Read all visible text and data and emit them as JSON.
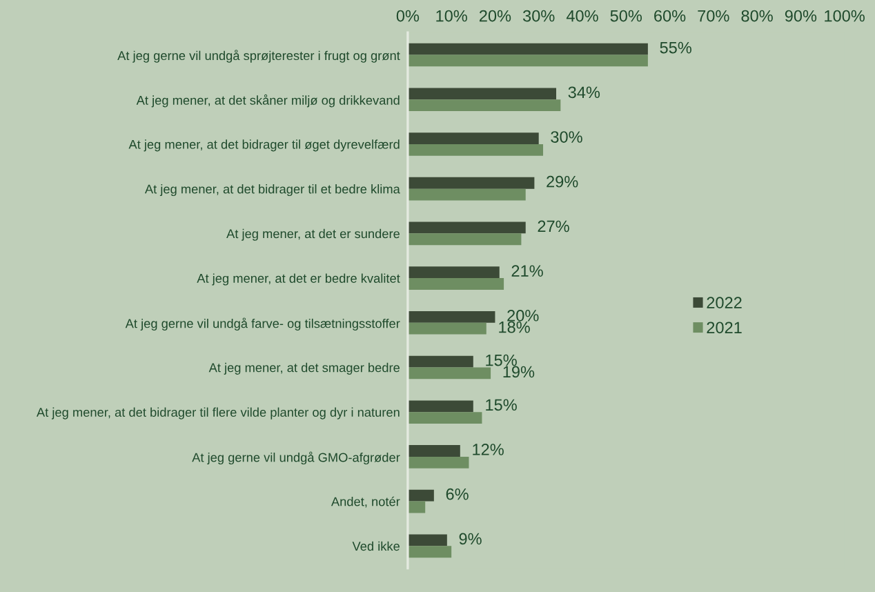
{
  "chart_data": {
    "type": "bar",
    "orientation": "horizontal",
    "categories": [
      "At jeg gerne vil undgå sprøjterester i frugt og grønt",
      "At jeg mener, at det skåner miljø og drikkevand",
      "At jeg mener, at det bidrager til øget dyrevelfærd",
      "At jeg mener, at det bidrager til et bedre klima",
      "At jeg mener, at det er sundere",
      "At jeg mener, at det er bedre kvalitet",
      "At jeg gerne vil undgå farve- og tilsætningsstoffer",
      "At jeg mener, at det smager bedre",
      "At jeg mener, at det bidrager til flere vilde planter og dyr i naturen",
      "At jeg gerne vil undgå GMO-afgrøder",
      "Andet, notér",
      "Ved ikke"
    ],
    "series": [
      {
        "name": "2022",
        "color": "#3c4a37",
        "values": [
          55,
          34,
          30,
          29,
          27,
          21,
          20,
          15,
          15,
          12,
          6,
          9
        ],
        "value_labels": [
          "55%",
          "34%",
          "30%",
          "29%",
          "27%",
          "21%",
          "20%",
          "15%",
          "15%",
          "12%",
          "6%",
          "9%"
        ]
      },
      {
        "name": "2021",
        "color": "#6e8e62",
        "values": [
          55,
          35,
          31,
          27,
          26,
          22,
          18,
          19,
          17,
          14,
          4,
          10
        ],
        "value_labels": [
          null,
          null,
          null,
          null,
          null,
          null,
          "18%",
          "19%",
          null,
          null,
          null,
          null
        ]
      }
    ],
    "xlim": [
      0,
      100
    ],
    "xticks": [
      {
        "value": 0,
        "label": "0%"
      },
      {
        "value": 10,
        "label": "10%"
      },
      {
        "value": 20,
        "label": "20%"
      },
      {
        "value": 30,
        "label": "30%"
      },
      {
        "value": 40,
        "label": "40%"
      },
      {
        "value": 50,
        "label": "50%"
      },
      {
        "value": 60,
        "label": "60%"
      },
      {
        "value": 70,
        "label": "70%"
      },
      {
        "value": 80,
        "label": "80%"
      },
      {
        "value": 90,
        "label": "90%"
      },
      {
        "value": 100,
        "label": "100%"
      }
    ],
    "legend": "right"
  }
}
